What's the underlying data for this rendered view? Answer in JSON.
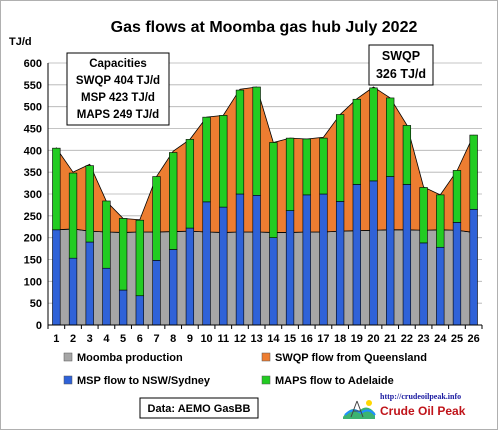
{
  "chart_data": {
    "type": "area",
    "title": "Gas flows at Moomba gas hub July 2022",
    "ylabel": "TJ/d",
    "ylim": [
      0,
      600
    ],
    "yticks": [
      0,
      50,
      100,
      150,
      200,
      250,
      300,
      350,
      400,
      450,
      500,
      550,
      600
    ],
    "grid": true,
    "x": [
      1,
      2,
      3,
      4,
      5,
      6,
      7,
      8,
      9,
      10,
      11,
      12,
      13,
      14,
      15,
      16,
      17,
      18,
      19,
      20,
      21,
      22,
      23,
      24,
      25,
      26
    ],
    "x_labels": [
      "1",
      "2",
      "3",
      "4",
      "5",
      "6",
      "7",
      "8",
      "9",
      "10",
      "11",
      "12",
      "13",
      "14",
      "15",
      "16",
      "17",
      "18",
      "19",
      "20",
      "21",
      "22",
      "23",
      "24",
      "25",
      "26"
    ],
    "moomba_production": [
      218,
      220,
      215,
      213,
      212,
      213,
      213,
      214,
      215,
      213,
      212,
      213,
      213,
      212,
      212,
      213,
      213,
      215,
      216,
      217,
      218,
      218,
      217,
      218,
      217,
      212
    ],
    "swqp_top": [
      405,
      350,
      368,
      283,
      244,
      241,
      340,
      398,
      425,
      476,
      480,
      540,
      545,
      418,
      428,
      426,
      430,
      482,
      518,
      545,
      520,
      458,
      316,
      298,
      353,
      435
    ],
    "series": [
      {
        "name": "Moomba production",
        "type": "area",
        "color": "#a6a6a6"
      },
      {
        "name": "SWQP flow from Queensland",
        "type": "area",
        "color": "#ed7d31"
      },
      {
        "name": "MSP flow to NSW/Sydney",
        "type": "bar",
        "color": "#2f62d8",
        "values": [
          218,
          153,
          190,
          130,
          80,
          67,
          148,
          173,
          222,
          282,
          270,
          300,
          297,
          200,
          262,
          298,
          300,
          283,
          322,
          330,
          340,
          322,
          188,
          178,
          235,
          265
        ]
      },
      {
        "name": "MAPS flow to Adelaide",
        "type": "bar",
        "color": "#22cc22",
        "top_values": [
          405,
          348,
          365,
          284,
          244,
          240,
          340,
          395,
          425,
          476,
          480,
          538,
          545,
          418,
          428,
          426,
          428,
          482,
          517,
          543,
          520,
          457,
          315,
          298,
          354,
          435
        ]
      }
    ],
    "legend_placement": "bottom",
    "annotations": {
      "capacities": {
        "heading": "Capacities",
        "lines": [
          "SWQP 404 TJ/d",
          "MSP 423 TJ/d",
          "MAPS 249 TJ/d"
        ]
      },
      "swqp_peak": {
        "lines": [
          "SWQP",
          "326 TJ/d"
        ]
      },
      "source": "Data:  AEMO GasBB"
    }
  },
  "logo": {
    "url": "http://crudeoilpeak.info",
    "name": "Crude Oil Peak"
  },
  "colors": {
    "moomba": "#a6a6a6",
    "swqp": "#ed7d31",
    "msp": "#2f62d8",
    "maps": "#22cc22",
    "grid": "#b0b0b0"
  }
}
